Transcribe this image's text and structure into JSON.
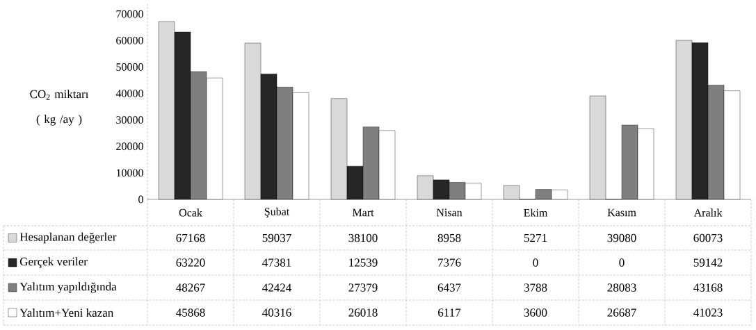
{
  "chart_data": {
    "type": "bar",
    "ylabel": "CO$_{2}$ miktarı ( kg /ay )",
    "categories": [
      "Ocak",
      "Şubat",
      "Mart",
      "Nisan",
      "Ekim",
      "Kasım",
      "Aralık"
    ],
    "series": [
      {
        "name": "Hesaplanan değerler",
        "color": "#d9d9d9",
        "values": [
          67168,
          59037,
          38100,
          8958,
          5271,
          39080,
          60073
        ]
      },
      {
        "name": "Gerçek veriler",
        "color": "#262626",
        "values": [
          63220,
          47381,
          12539,
          7376,
          0,
          0,
          59142
        ]
      },
      {
        "name": "Yalıtım yapıldığında",
        "color": "#7f7f7f",
        "values": [
          48267,
          42424,
          27379,
          6437,
          3788,
          28083,
          43168
        ]
      },
      {
        "name": "Yalıtım+Yeni kazan",
        "color": "#ffffff",
        "values": [
          45868,
          40316,
          26018,
          6117,
          3600,
          26687,
          41023
        ]
      }
    ],
    "ylim": [
      0,
      74000
    ],
    "yticks": [
      0,
      10000,
      20000,
      30000,
      40000,
      50000,
      60000,
      70000
    ],
    "grid": false,
    "legend": "bottom left",
    "data_labels": true
  }
}
